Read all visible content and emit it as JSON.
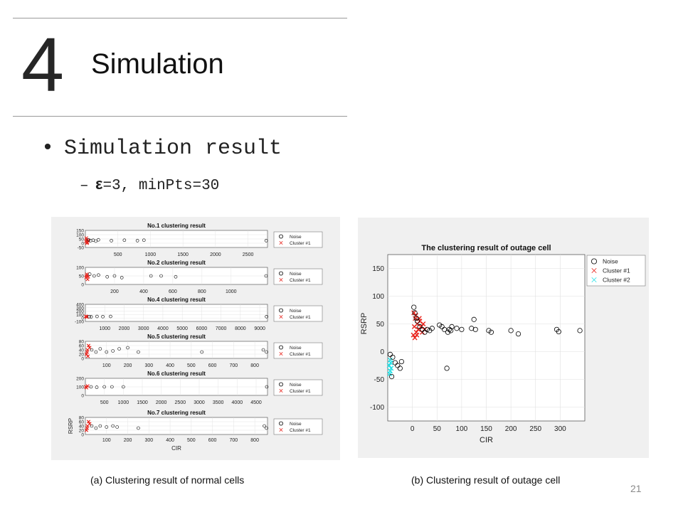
{
  "slide": {
    "section_number": "4",
    "title": "Simulation",
    "bullet": "Simulation result",
    "sub_bullet_eps": "ε",
    "sub_bullet_rest": "=3, minPts=30",
    "page_number": "21"
  },
  "captions": {
    "a": "(a) Clustering result of normal cells",
    "b": "(b) Clustering result of outage cell"
  },
  "colors": {
    "noise": "#000000",
    "cluster1": "#e8231c",
    "cluster2": "#22e0e6"
  },
  "chart_data": [
    {
      "type": "scatter",
      "id": "fig-a",
      "subplots": [
        {
          "title": "No.1 clustering result",
          "xlim": [
            0,
            2800
          ],
          "ylim": [
            -50,
            150
          ],
          "xticks": [
            "500",
            "1000",
            "1500",
            "2000",
            "2500"
          ],
          "yticks": [
            "150",
            "100",
            "50",
            "0",
            "-50"
          ],
          "legend": [
            "Noise",
            "Cluster #1"
          ],
          "series": [
            {
              "name": "Cluster #1",
              "marker": "x",
              "points": [
                [
                  10,
                  20
                ],
                [
                  20,
                  40
                ],
                [
                  30,
                  10
                ],
                [
                  15,
                  60
                ],
                [
                  40,
                  30
                ],
                [
                  25,
                  0
                ]
              ]
            },
            {
              "name": "Noise",
              "marker": "o",
              "points": [
                [
                  50,
                  40
                ],
                [
                  80,
                  30
                ],
                [
                  120,
                  35
                ],
                [
                  160,
                  25
                ],
                [
                  200,
                  40
                ],
                [
                  400,
                  30
                ],
                [
                  600,
                  35
                ],
                [
                  800,
                  30
                ],
                [
                  900,
                  35
                ],
                [
                  2780,
                  30
                ]
              ]
            }
          ]
        },
        {
          "title": "No.2 clustering result",
          "xlim": [
            0,
            1250
          ],
          "ylim": [
            0,
            100
          ],
          "xticks": [
            "200",
            "400",
            "600",
            "800",
            "1000"
          ],
          "yticks": [
            "100",
            "50",
            "0"
          ],
          "legend": [
            "Noise",
            "Cluster #1"
          ],
          "series": [
            {
              "name": "Cluster #1",
              "marker": "x",
              "points": [
                [
                  5,
                  40
                ],
                [
                  10,
                  60
                ],
                [
                  15,
                  30
                ],
                [
                  8,
                  50
                ],
                [
                  20,
                  45
                ]
              ]
            },
            {
              "name": "Noise",
              "marker": "o",
              "points": [
                [
                  30,
                  60
                ],
                [
                  60,
                  50
                ],
                [
                  90,
                  55
                ],
                [
                  150,
                  45
                ],
                [
                  200,
                  50
                ],
                [
                  250,
                  40
                ],
                [
                  450,
                  50
                ],
                [
                  520,
                  50
                ],
                [
                  620,
                  45
                ],
                [
                  1240,
                  50
                ]
              ]
            }
          ]
        },
        {
          "title": "No.4 clustering result",
          "xlim": [
            0,
            9400
          ],
          "ylim": [
            -100,
            400
          ],
          "xticks": [
            "1000",
            "2000",
            "3000",
            "4000",
            "5000",
            "6000",
            "7000",
            "8000",
            "9000"
          ],
          "yticks": [
            "400",
            "300",
            "200",
            "100",
            "0",
            "-100"
          ],
          "legend": [
            "Noise",
            "Cluster #1"
          ],
          "series": [
            {
              "name": "Cluster #1",
              "marker": "x",
              "points": [
                [
                  20,
                  50
                ],
                [
                  50,
                  40
                ],
                [
                  80,
                  30
                ]
              ]
            },
            {
              "name": "Noise",
              "marker": "o",
              "points": [
                [
                  200,
                  40
                ],
                [
                  300,
                  35
                ],
                [
                  600,
                  45
                ],
                [
                  900,
                  40
                ],
                [
                  1300,
                  45
                ],
                [
                  9350,
                  40
                ]
              ]
            }
          ]
        },
        {
          "title": "No.5 clustering result",
          "xlim": [
            0,
            860
          ],
          "ylim": [
            0,
            80
          ],
          "xticks": [
            "100",
            "200",
            "300",
            "400",
            "500",
            "600",
            "700",
            "800"
          ],
          "yticks": [
            "80",
            "60",
            "40",
            "20",
            "0"
          ],
          "legend": [
            "Noise",
            "Cluster #1"
          ],
          "series": [
            {
              "name": "Cluster #1",
              "marker": "x",
              "points": [
                [
                  5,
                  20
                ],
                [
                  10,
                  40
                ],
                [
                  15,
                  60
                ],
                [
                  8,
                  30
                ],
                [
                  20,
                  50
                ],
                [
                  12,
                  10
                ]
              ]
            },
            {
              "name": "Noise",
              "marker": "o",
              "points": [
                [
                  30,
                  40
                ],
                [
                  50,
                  30
                ],
                [
                  70,
                  45
                ],
                [
                  100,
                  30
                ],
                [
                  130,
                  35
                ],
                [
                  160,
                  45
                ],
                [
                  200,
                  50
                ],
                [
                  250,
                  30
                ],
                [
                  550,
                  30
                ],
                [
                  840,
                  40
                ],
                [
                  855,
                  30
                ]
              ]
            }
          ]
        },
        {
          "title": "No.6 clustering result",
          "xlim": [
            0,
            4800
          ],
          "ylim": [
            0,
            200
          ],
          "xticks": [
            "500",
            "1000",
            "1500",
            "2000",
            "2500",
            "3000",
            "3500",
            "4000",
            "4500"
          ],
          "yticks": [
            "200",
            "100",
            "0"
          ],
          "legend": [
            "Noise",
            "Cluster #1"
          ],
          "series": [
            {
              "name": "Cluster #1",
              "marker": "x",
              "points": [
                [
                  10,
                  100
                ],
                [
                  30,
                  90
                ],
                [
                  60,
                  110
                ]
              ]
            },
            {
              "name": "Noise",
              "marker": "o",
              "points": [
                [
                  150,
                  100
                ],
                [
                  300,
                  95
                ],
                [
                  500,
                  100
                ],
                [
                  700,
                  100
                ],
                [
                  1000,
                  100
                ],
                [
                  4780,
                  100
                ]
              ]
            }
          ]
        },
        {
          "title": "No.7 clustering result",
          "xlabel": "CIR",
          "ylabel": "RSRP",
          "xlim": [
            0,
            860
          ],
          "ylim": [
            0,
            80
          ],
          "xticks": [
            "100",
            "200",
            "300",
            "400",
            "500",
            "600",
            "700",
            "800"
          ],
          "yticks": [
            "80",
            "60",
            "40",
            "20",
            "0"
          ],
          "legend": [
            "Noise",
            "Cluster #1"
          ],
          "series": [
            {
              "name": "Cluster #1",
              "marker": "x",
              "points": [
                [
                  5,
                  20
                ],
                [
                  10,
                  40
                ],
                [
                  15,
                  60
                ],
                [
                  8,
                  30
                ],
                [
                  20,
                  50
                ]
              ]
            },
            {
              "name": "Noise",
              "marker": "o",
              "points": [
                [
                  30,
                  40
                ],
                [
                  50,
                  30
                ],
                [
                  70,
                  40
                ],
                [
                  100,
                  35
                ],
                [
                  130,
                  40
                ],
                [
                  150,
                  35
                ],
                [
                  250,
                  30
                ],
                [
                  845,
                  40
                ],
                [
                  855,
                  30
                ]
              ]
            }
          ]
        }
      ]
    },
    {
      "type": "scatter",
      "id": "fig-b",
      "title": "The clustering result of outage cell",
      "xlabel": "CIR",
      "ylabel": "RSRP",
      "xlim": [
        -50,
        350
      ],
      "ylim": [
        -125,
        175
      ],
      "xticks": [
        "0",
        "50",
        "100",
        "150",
        "200",
        "250",
        "300"
      ],
      "yticks": [
        "150",
        "100",
        "50",
        "0",
        "-50",
        "-100"
      ],
      "legend": [
        "Noise",
        "Cluster #1",
        "Cluster #2"
      ],
      "series": [
        {
          "name": "Cluster #1",
          "marker": "x",
          "points": [
            [
              2,
              30
            ],
            [
              4,
              45
            ],
            [
              6,
              60
            ],
            [
              8,
              35
            ],
            [
              3,
              70
            ],
            [
              10,
              50
            ],
            [
              12,
              40
            ],
            [
              15,
              55
            ],
            [
              18,
              45
            ],
            [
              5,
              25
            ],
            [
              20,
              35
            ],
            [
              7,
              65
            ],
            [
              9,
              30
            ],
            [
              14,
              60
            ],
            [
              25,
              40
            ],
            [
              22,
              50
            ]
          ]
        },
        {
          "name": "Cluster #2",
          "marker": "x",
          "points": [
            [
              -47,
              -25
            ],
            [
              -45,
              -35
            ],
            [
              -44,
              -20
            ],
            [
              -46,
              -40
            ],
            [
              -43,
              -30
            ],
            [
              -45,
              -15
            ]
          ]
        },
        {
          "name": "Noise",
          "marker": "o",
          "points": [
            [
              3,
              80
            ],
            [
              5,
              70
            ],
            [
              8,
              60
            ],
            [
              10,
              55
            ],
            [
              15,
              45
            ],
            [
              20,
              40
            ],
            [
              25,
              35
            ],
            [
              30,
              40
            ],
            [
              35,
              38
            ],
            [
              40,
              42
            ],
            [
              55,
              48
            ],
            [
              60,
              45
            ],
            [
              65,
              40
            ],
            [
              72,
              35
            ],
            [
              75,
              40
            ],
            [
              78,
              38
            ],
            [
              80,
              45
            ],
            [
              90,
              42
            ],
            [
              100,
              40
            ],
            [
              120,
              42
            ],
            [
              125,
              58
            ],
            [
              128,
              40
            ],
            [
              155,
              38
            ],
            [
              160,
              35
            ],
            [
              200,
              38
            ],
            [
              215,
              32
            ],
            [
              293,
              40
            ],
            [
              297,
              36
            ],
            [
              340,
              38
            ],
            [
              -40,
              -10
            ],
            [
              -35,
              -20
            ],
            [
              -30,
              -25
            ],
            [
              -25,
              -30
            ],
            [
              -22,
              -18
            ],
            [
              -45,
              -5
            ],
            [
              -42,
              -45
            ],
            [
              70,
              -30
            ]
          ]
        }
      ]
    }
  ]
}
